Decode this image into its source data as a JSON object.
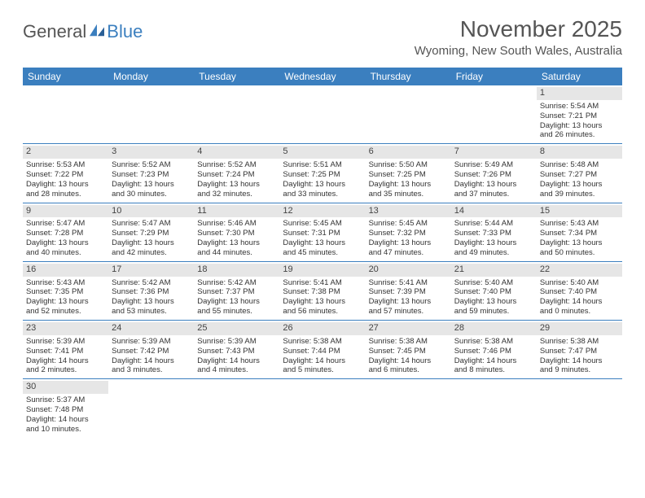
{
  "logo": {
    "textA": "General",
    "textB": "Blue"
  },
  "title": "November 2025",
  "location": "Wyoming, New South Wales, Australia",
  "dayNames": [
    "Sunday",
    "Monday",
    "Tuesday",
    "Wednesday",
    "Thursday",
    "Friday",
    "Saturday"
  ],
  "colors": {
    "accent": "#3b7fbf",
    "gray": "#e6e6e6"
  },
  "weeks": [
    [
      {
        "empty": true
      },
      {
        "empty": true
      },
      {
        "empty": true
      },
      {
        "empty": true
      },
      {
        "empty": true
      },
      {
        "empty": true
      },
      {
        "n": "1",
        "sr": "Sunrise: 5:54 AM",
        "ss": "Sunset: 7:21 PM",
        "d1": "Daylight: 13 hours",
        "d2": "and 26 minutes."
      }
    ],
    [
      {
        "n": "2",
        "sr": "Sunrise: 5:53 AM",
        "ss": "Sunset: 7:22 PM",
        "d1": "Daylight: 13 hours",
        "d2": "and 28 minutes."
      },
      {
        "n": "3",
        "sr": "Sunrise: 5:52 AM",
        "ss": "Sunset: 7:23 PM",
        "d1": "Daylight: 13 hours",
        "d2": "and 30 minutes."
      },
      {
        "n": "4",
        "sr": "Sunrise: 5:52 AM",
        "ss": "Sunset: 7:24 PM",
        "d1": "Daylight: 13 hours",
        "d2": "and 32 minutes."
      },
      {
        "n": "5",
        "sr": "Sunrise: 5:51 AM",
        "ss": "Sunset: 7:25 PM",
        "d1": "Daylight: 13 hours",
        "d2": "and 33 minutes."
      },
      {
        "n": "6",
        "sr": "Sunrise: 5:50 AM",
        "ss": "Sunset: 7:25 PM",
        "d1": "Daylight: 13 hours",
        "d2": "and 35 minutes."
      },
      {
        "n": "7",
        "sr": "Sunrise: 5:49 AM",
        "ss": "Sunset: 7:26 PM",
        "d1": "Daylight: 13 hours",
        "d2": "and 37 minutes."
      },
      {
        "n": "8",
        "sr": "Sunrise: 5:48 AM",
        "ss": "Sunset: 7:27 PM",
        "d1": "Daylight: 13 hours",
        "d2": "and 39 minutes."
      }
    ],
    [
      {
        "n": "9",
        "sr": "Sunrise: 5:47 AM",
        "ss": "Sunset: 7:28 PM",
        "d1": "Daylight: 13 hours",
        "d2": "and 40 minutes."
      },
      {
        "n": "10",
        "sr": "Sunrise: 5:47 AM",
        "ss": "Sunset: 7:29 PM",
        "d1": "Daylight: 13 hours",
        "d2": "and 42 minutes."
      },
      {
        "n": "11",
        "sr": "Sunrise: 5:46 AM",
        "ss": "Sunset: 7:30 PM",
        "d1": "Daylight: 13 hours",
        "d2": "and 44 minutes."
      },
      {
        "n": "12",
        "sr": "Sunrise: 5:45 AM",
        "ss": "Sunset: 7:31 PM",
        "d1": "Daylight: 13 hours",
        "d2": "and 45 minutes."
      },
      {
        "n": "13",
        "sr": "Sunrise: 5:45 AM",
        "ss": "Sunset: 7:32 PM",
        "d1": "Daylight: 13 hours",
        "d2": "and 47 minutes."
      },
      {
        "n": "14",
        "sr": "Sunrise: 5:44 AM",
        "ss": "Sunset: 7:33 PM",
        "d1": "Daylight: 13 hours",
        "d2": "and 49 minutes."
      },
      {
        "n": "15",
        "sr": "Sunrise: 5:43 AM",
        "ss": "Sunset: 7:34 PM",
        "d1": "Daylight: 13 hours",
        "d2": "and 50 minutes."
      }
    ],
    [
      {
        "n": "16",
        "sr": "Sunrise: 5:43 AM",
        "ss": "Sunset: 7:35 PM",
        "d1": "Daylight: 13 hours",
        "d2": "and 52 minutes."
      },
      {
        "n": "17",
        "sr": "Sunrise: 5:42 AM",
        "ss": "Sunset: 7:36 PM",
        "d1": "Daylight: 13 hours",
        "d2": "and 53 minutes."
      },
      {
        "n": "18",
        "sr": "Sunrise: 5:42 AM",
        "ss": "Sunset: 7:37 PM",
        "d1": "Daylight: 13 hours",
        "d2": "and 55 minutes."
      },
      {
        "n": "19",
        "sr": "Sunrise: 5:41 AM",
        "ss": "Sunset: 7:38 PM",
        "d1": "Daylight: 13 hours",
        "d2": "and 56 minutes."
      },
      {
        "n": "20",
        "sr": "Sunrise: 5:41 AM",
        "ss": "Sunset: 7:39 PM",
        "d1": "Daylight: 13 hours",
        "d2": "and 57 minutes."
      },
      {
        "n": "21",
        "sr": "Sunrise: 5:40 AM",
        "ss": "Sunset: 7:40 PM",
        "d1": "Daylight: 13 hours",
        "d2": "and 59 minutes."
      },
      {
        "n": "22",
        "sr": "Sunrise: 5:40 AM",
        "ss": "Sunset: 7:40 PM",
        "d1": "Daylight: 14 hours",
        "d2": "and 0 minutes."
      }
    ],
    [
      {
        "n": "23",
        "sr": "Sunrise: 5:39 AM",
        "ss": "Sunset: 7:41 PM",
        "d1": "Daylight: 14 hours",
        "d2": "and 2 minutes."
      },
      {
        "n": "24",
        "sr": "Sunrise: 5:39 AM",
        "ss": "Sunset: 7:42 PM",
        "d1": "Daylight: 14 hours",
        "d2": "and 3 minutes."
      },
      {
        "n": "25",
        "sr": "Sunrise: 5:39 AM",
        "ss": "Sunset: 7:43 PM",
        "d1": "Daylight: 14 hours",
        "d2": "and 4 minutes."
      },
      {
        "n": "26",
        "sr": "Sunrise: 5:38 AM",
        "ss": "Sunset: 7:44 PM",
        "d1": "Daylight: 14 hours",
        "d2": "and 5 minutes."
      },
      {
        "n": "27",
        "sr": "Sunrise: 5:38 AM",
        "ss": "Sunset: 7:45 PM",
        "d1": "Daylight: 14 hours",
        "d2": "and 6 minutes."
      },
      {
        "n": "28",
        "sr": "Sunrise: 5:38 AM",
        "ss": "Sunset: 7:46 PM",
        "d1": "Daylight: 14 hours",
        "d2": "and 8 minutes."
      },
      {
        "n": "29",
        "sr": "Sunrise: 5:38 AM",
        "ss": "Sunset: 7:47 PM",
        "d1": "Daylight: 14 hours",
        "d2": "and 9 minutes."
      }
    ],
    [
      {
        "n": "30",
        "sr": "Sunrise: 5:37 AM",
        "ss": "Sunset: 7:48 PM",
        "d1": "Daylight: 14 hours",
        "d2": "and 10 minutes."
      },
      {
        "empty": true
      },
      {
        "empty": true
      },
      {
        "empty": true
      },
      {
        "empty": true
      },
      {
        "empty": true
      },
      {
        "empty": true
      }
    ]
  ]
}
